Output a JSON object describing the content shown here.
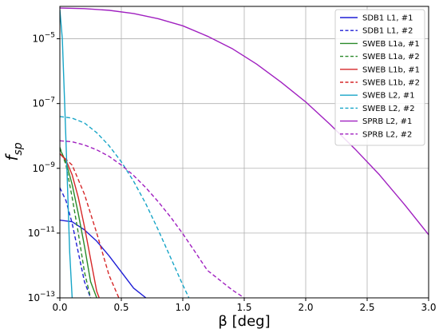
{
  "chart_data": {
    "type": "line",
    "title": "",
    "xlabel": "β [deg]",
    "ylabel": "f",
    "ylabel_sub": "sp",
    "xlim": [
      0,
      3.0
    ],
    "ylim_exp": [
      -13,
      -4
    ],
    "yscale": "log",
    "grid": true,
    "legend_position": "top-right",
    "x_ticks": [
      0.0,
      0.5,
      1.0,
      1.5,
      2.0,
      2.5,
      3.0
    ],
    "x_tick_labels": [
      "0.0",
      "0.5",
      "1.0",
      "1.5",
      "2.0",
      "2.5",
      "3.0"
    ],
    "y_tick_exps": [
      -5,
      -7,
      -9,
      -11,
      -13
    ],
    "y_tick_labels": [
      {
        "base": "10",
        "exp": "−5"
      },
      {
        "base": "10",
        "exp": "−7"
      },
      {
        "base": "10",
        "exp": "−9"
      },
      {
        "base": "10",
        "exp": "−11"
      },
      {
        "base": "10",
        "exp": "−13"
      }
    ],
    "series": [
      {
        "name": "SDB1 L1, #1",
        "color": "#1f1fd6",
        "dashed": false,
        "x": [
          0.0,
          0.1,
          0.2,
          0.3,
          0.4,
          0.5,
          0.6,
          0.7
        ],
        "log10_y": [
          -10.6,
          -10.65,
          -10.9,
          -11.25,
          -11.7,
          -12.2,
          -12.7,
          -13.0
        ]
      },
      {
        "name": "SDB1 L1, #2",
        "color": "#1f1fd6",
        "dashed": true,
        "x": [
          0.0,
          0.05,
          0.1,
          0.15,
          0.2,
          0.25
        ],
        "log10_y": [
          -9.6,
          -10.0,
          -10.7,
          -11.6,
          -12.5,
          -13.0
        ]
      },
      {
        "name": "SWEB L1a, #1",
        "color": "#2a8a2a",
        "dashed": false,
        "x": [
          0.0,
          0.05,
          0.1,
          0.15,
          0.2,
          0.25,
          0.3
        ],
        "log10_y": [
          -8.4,
          -8.8,
          -9.5,
          -10.4,
          -11.4,
          -12.5,
          -13.0
        ]
      },
      {
        "name": "SWEB L1a, #2",
        "color": "#2a8a2a",
        "dashed": true,
        "x": [
          0.0,
          0.05,
          0.1,
          0.15,
          0.2,
          0.25
        ],
        "log10_y": [
          -8.35,
          -8.9,
          -9.9,
          -11.0,
          -12.2,
          -13.0
        ]
      },
      {
        "name": "SWEB L1b, #1",
        "color": "#d62728",
        "dashed": false,
        "x": [
          0.0,
          0.05,
          0.1,
          0.15,
          0.2,
          0.25,
          0.3,
          0.32
        ],
        "log10_y": [
          -8.55,
          -8.75,
          -9.2,
          -9.9,
          -10.8,
          -11.8,
          -12.8,
          -13.0
        ]
      },
      {
        "name": "SWEB L1b, #2",
        "color": "#d62728",
        "dashed": true,
        "x": [
          0.0,
          0.1,
          0.2,
          0.3,
          0.4,
          0.48
        ],
        "log10_y": [
          -8.55,
          -8.9,
          -9.8,
          -11.0,
          -12.3,
          -13.0
        ]
      },
      {
        "name": "SWEB L2, #1",
        "color": "#17a5c7",
        "dashed": false,
        "x": [
          0.0,
          0.02,
          0.04,
          0.06,
          0.08,
          0.1
        ],
        "log10_y": [
          -4.1,
          -5.0,
          -7.1,
          -9.3,
          -11.6,
          -13.0
        ]
      },
      {
        "name": "SWEB L2, #2",
        "color": "#17a5c7",
        "dashed": true,
        "x": [
          0.0,
          0.1,
          0.2,
          0.3,
          0.4,
          0.5,
          0.6,
          0.7,
          0.8,
          0.9,
          1.0,
          1.05
        ],
        "log10_y": [
          -7.4,
          -7.45,
          -7.6,
          -7.9,
          -8.3,
          -8.8,
          -9.4,
          -10.1,
          -10.9,
          -11.75,
          -12.6,
          -13.0
        ]
      },
      {
        "name": "SPRB L2, #1",
        "color": "#a020c0",
        "dashed": false,
        "x": [
          0.0,
          0.2,
          0.4,
          0.6,
          0.8,
          1.0,
          1.2,
          1.4,
          1.6,
          1.8,
          2.0,
          2.2,
          2.4,
          2.6,
          2.8,
          3.0
        ],
        "log10_y": [
          -4.05,
          -4.07,
          -4.12,
          -4.22,
          -4.38,
          -4.6,
          -4.92,
          -5.3,
          -5.78,
          -6.34,
          -6.95,
          -7.65,
          -8.4,
          -9.2,
          -10.1,
          -11.05
        ]
      },
      {
        "name": "SPRB L2, #2",
        "color": "#a020c0",
        "dashed": true,
        "x": [
          0.0,
          0.1,
          0.2,
          0.3,
          0.4,
          0.5,
          0.6,
          0.7,
          0.8,
          0.9,
          1.0,
          1.1,
          1.2,
          1.3,
          1.4,
          1.5
        ],
        "log10_y": [
          -8.15,
          -8.18,
          -8.28,
          -8.43,
          -8.63,
          -8.9,
          -9.22,
          -9.6,
          -10.03,
          -10.5,
          -11.02,
          -11.58,
          -12.15,
          -12.45,
          -12.75,
          -13.0
        ]
      }
    ]
  }
}
